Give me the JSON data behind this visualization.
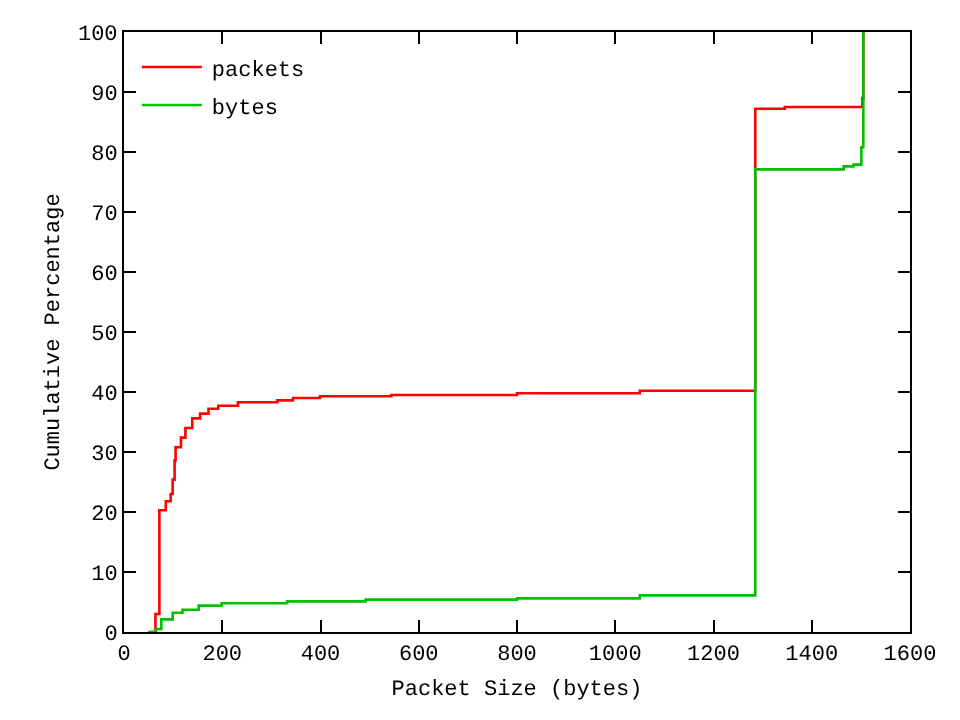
{
  "chart_data": {
    "type": "step",
    "xlabel": "Packet Size (bytes)",
    "ylabel": "Cumulative Percentage",
    "xlim": [
      0,
      1600
    ],
    "xticks": [
      0,
      200,
      400,
      600,
      800,
      1000,
      1200,
      1400,
      1600
    ],
    "ylim": [
      0,
      100
    ],
    "yticks": [
      0,
      10,
      20,
      30,
      40,
      50,
      60,
      70,
      80,
      90,
      100
    ],
    "grid": false,
    "legend": "top left",
    "marker": "none",
    "line_style": "solid",
    "series": [
      {
        "name": "packets",
        "color": "#ff0000",
        "x": [
          52,
          64,
          72,
          85,
          95,
          99,
          103,
          105,
          116,
          125,
          139,
          155,
          172,
          192,
          232,
          312,
          344,
          399,
          544,
          800,
          1050,
          1285,
          1345,
          1503,
          1505
        ],
        "values": [
          0,
          3,
          20.3,
          21.8,
          23,
          25.4,
          28.6,
          30.8,
          32.4,
          34,
          35.6,
          36.4,
          37.2,
          37.7,
          38.3,
          38.6,
          39,
          39.3,
          39.5,
          39.8,
          40.2,
          87.2,
          87.5,
          89,
          100
        ]
      },
      {
        "name": "bytes",
        "color": "#00c000",
        "x": [
          49,
          65,
          76,
          99,
          119,
          152,
          199,
          332,
          492,
          800,
          1050,
          1285,
          1465,
          1485,
          1501,
          1505
        ],
        "values": [
          0,
          0.5,
          2.1,
          3.2,
          3.7,
          4.4,
          4.8,
          5.1,
          5.4,
          5.6,
          6.1,
          77.1,
          77.6,
          77.9,
          80.8,
          100
        ]
      }
    ]
  }
}
